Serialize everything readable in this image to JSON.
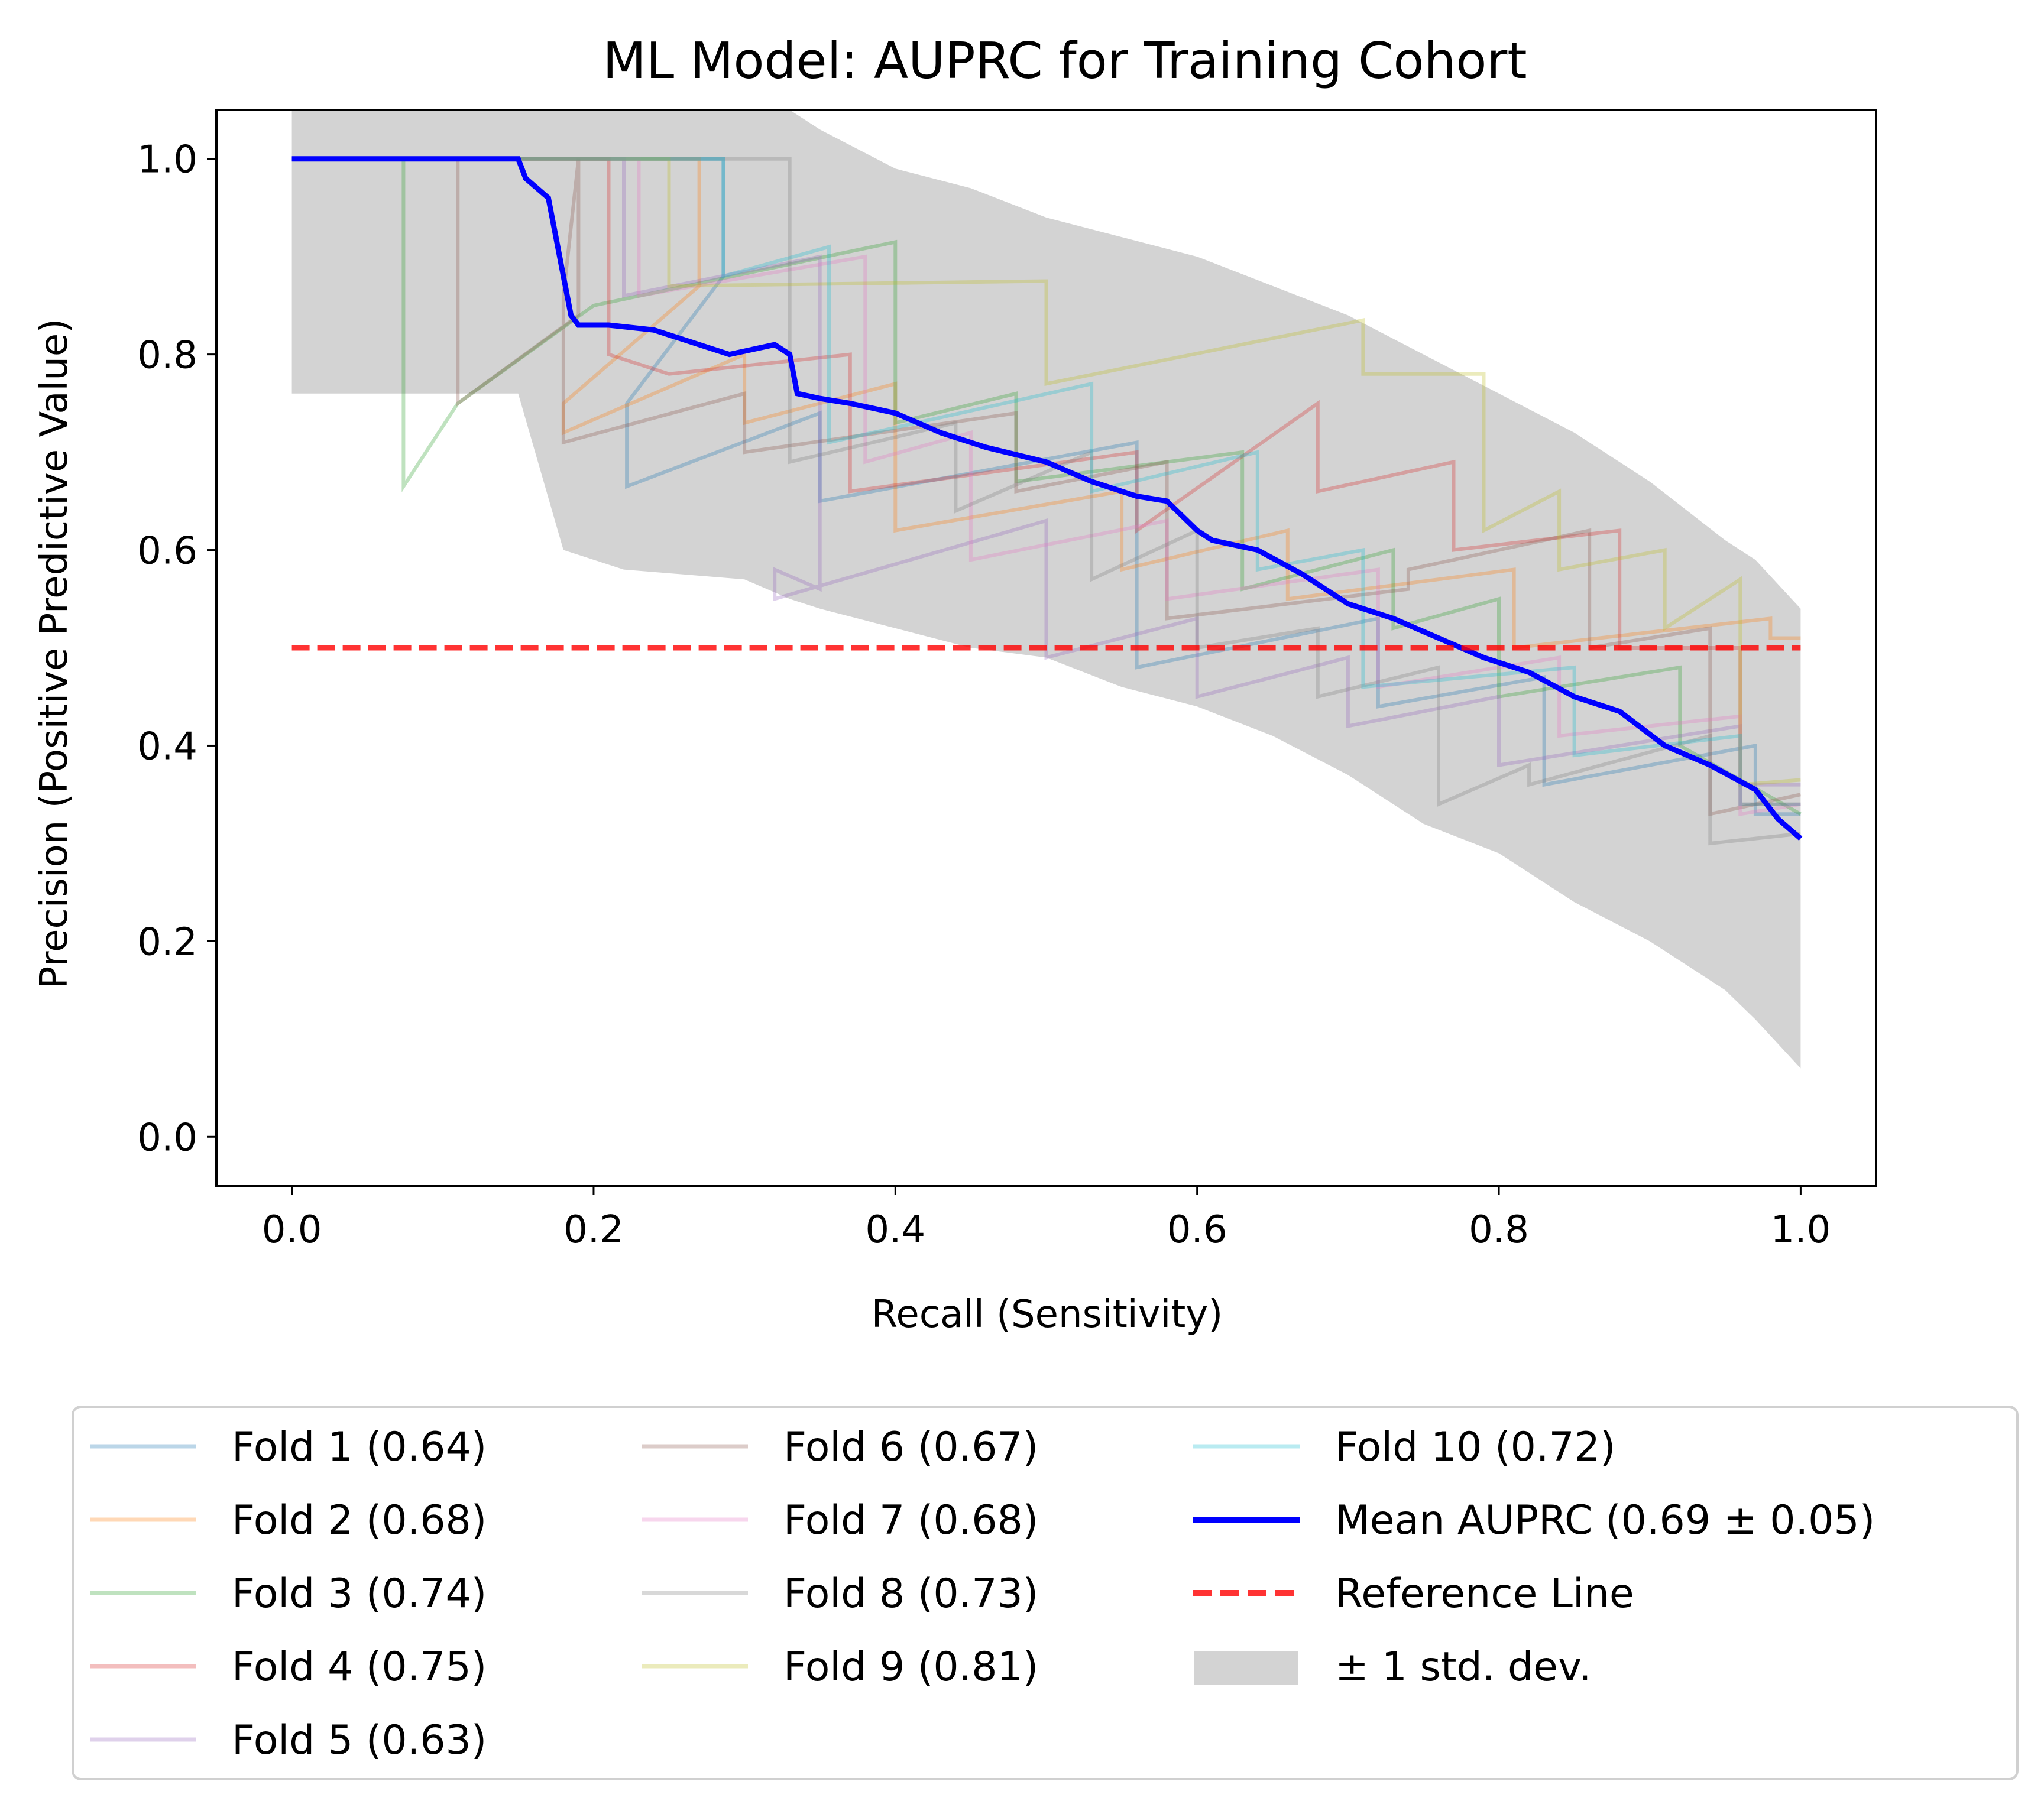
{
  "chart_data": {
    "type": "line",
    "title": "ML Model: AUPRC for Training Cohort",
    "xlabel": "Recall (Sensitivity)",
    "ylabel": "Precision (Positive Predictive Value)",
    "xlim": [
      -0.05,
      1.05
    ],
    "ylim": [
      -0.05,
      1.05
    ],
    "xticks": [
      0.0,
      0.2,
      0.4,
      0.6,
      0.8,
      1.0
    ],
    "xtick_labels": [
      "0.0",
      "0.2",
      "0.4",
      "0.6",
      "0.8",
      "1.0"
    ],
    "yticks": [
      0.0,
      0.2,
      0.4,
      0.6,
      0.8,
      1.0
    ],
    "ytick_labels": [
      "0.0",
      "0.2",
      "0.4",
      "0.6",
      "0.8",
      "1.0"
    ],
    "grid": false,
    "legend_position": "below",
    "series": [
      {
        "name": "Fold 1 (0.64)",
        "color": "#1f77b4",
        "opacity": 0.3,
        "x": [
          0,
          0.286,
          0.286,
          0.222,
          0.222,
          0.35,
          0.35,
          0.56,
          0.56,
          0.72,
          0.72,
          0.83,
          0.83,
          0.97,
          0.97,
          1.0
        ],
        "y": [
          1.0,
          1.0,
          0.88,
          0.75,
          0.665,
          0.74,
          0.65,
          0.71,
          0.48,
          0.53,
          0.44,
          0.47,
          0.36,
          0.4,
          0.33,
          0.33
        ]
      },
      {
        "name": "Fold 2 (0.68)",
        "color": "#ff7f0e",
        "opacity": 0.3,
        "x": [
          0,
          0.27,
          0.27,
          0.18,
          0.18,
          0.3,
          0.3,
          0.4,
          0.4,
          0.55,
          0.55,
          0.66,
          0.66,
          0.81,
          0.81,
          0.98,
          0.98,
          1.0
        ],
        "y": [
          1.0,
          1.0,
          0.87,
          0.75,
          0.72,
          0.8,
          0.73,
          0.77,
          0.62,
          0.66,
          0.58,
          0.62,
          0.55,
          0.58,
          0.5,
          0.53,
          0.51,
          0.51
        ]
      },
      {
        "name": "Fold 3 (0.74)",
        "color": "#2ca02c",
        "opacity": 0.3,
        "x": [
          0,
          0.074,
          0.074,
          0.11,
          0.2,
          0.4,
          0.4,
          0.48,
          0.48,
          0.63,
          0.63,
          0.73,
          0.73,
          0.8,
          0.8,
          0.92,
          0.92,
          1.0
        ],
        "y": [
          1.0,
          1.0,
          0.665,
          0.75,
          0.85,
          0.915,
          0.73,
          0.76,
          0.67,
          0.7,
          0.56,
          0.6,
          0.52,
          0.55,
          0.45,
          0.48,
          0.4,
          0.33
        ]
      },
      {
        "name": "Fold 4 (0.75)",
        "color": "#d62728",
        "opacity": 0.3,
        "x": [
          0,
          0.21,
          0.21,
          0.25,
          0.37,
          0.37,
          0.56,
          0.56,
          0.68,
          0.68,
          0.77,
          0.77,
          0.88,
          0.88,
          0.96,
          0.96,
          1.0
        ],
        "y": [
          1.0,
          1.0,
          0.8,
          0.78,
          0.8,
          0.66,
          0.7,
          0.62,
          0.75,
          0.66,
          0.69,
          0.6,
          0.62,
          0.5,
          0.5,
          0.34,
          0.34
        ]
      },
      {
        "name": "Fold 5 (0.63)",
        "color": "#9467bd",
        "opacity": 0.3,
        "x": [
          0,
          0.22,
          0.22,
          0.35,
          0.35,
          0.32,
          0.32,
          0.5,
          0.5,
          0.6,
          0.6,
          0.7,
          0.7,
          0.8,
          0.8,
          0.96,
          0.96,
          1.0
        ],
        "y": [
          1.0,
          1.0,
          0.86,
          0.9,
          0.56,
          0.58,
          0.55,
          0.63,
          0.49,
          0.53,
          0.45,
          0.49,
          0.42,
          0.45,
          0.38,
          0.42,
          0.36,
          0.36
        ]
      },
      {
        "name": "Fold 6 (0.67)",
        "color": "#8c564b",
        "opacity": 0.3,
        "x": [
          0,
          0.11,
          0.11,
          0.19,
          0.19,
          0.18,
          0.18,
          0.3,
          0.3,
          0.48,
          0.48,
          0.58,
          0.58,
          0.74,
          0.74,
          0.86,
          0.86,
          0.94,
          0.94,
          1.0
        ],
        "y": [
          1.0,
          1.0,
          0.75,
          0.84,
          1.0,
          0.86,
          0.71,
          0.76,
          0.7,
          0.74,
          0.66,
          0.69,
          0.53,
          0.56,
          0.58,
          0.62,
          0.5,
          0.52,
          0.33,
          0.35
        ]
      },
      {
        "name": "Fold 7 (0.68)",
        "color": "#e377c2",
        "opacity": 0.3,
        "x": [
          0,
          0.23,
          0.23,
          0.38,
          0.38,
          0.45,
          0.45,
          0.58,
          0.58,
          0.72,
          0.72,
          0.84,
          0.84,
          0.96,
          0.96,
          1.0
        ],
        "y": [
          1.0,
          1.0,
          0.86,
          0.9,
          0.69,
          0.72,
          0.59,
          0.63,
          0.55,
          0.58,
          0.46,
          0.49,
          0.41,
          0.43,
          0.33,
          0.34
        ]
      },
      {
        "name": "Fold 8 (0.73)",
        "color": "#7f7f7f",
        "opacity": 0.3,
        "x": [
          0,
          0.33,
          0.33,
          0.44,
          0.44,
          0.53,
          0.53,
          0.6,
          0.6,
          0.68,
          0.68,
          0.76,
          0.76,
          0.82,
          0.82,
          0.94,
          0.94,
          1.0
        ],
        "y": [
          1.0,
          1.0,
          0.69,
          0.73,
          0.64,
          0.7,
          0.57,
          0.62,
          0.5,
          0.52,
          0.45,
          0.48,
          0.34,
          0.38,
          0.36,
          0.41,
          0.3,
          0.31
        ]
      },
      {
        "name": "Fold 9 (0.81)",
        "color": "#bcbd22",
        "opacity": 0.3,
        "x": [
          0,
          0.25,
          0.25,
          0.5,
          0.5,
          0.71,
          0.71,
          0.79,
          0.79,
          0.84,
          0.84,
          0.91,
          0.91,
          0.96,
          0.96,
          1.0
        ],
        "y": [
          1.0,
          1.0,
          0.87,
          0.875,
          0.77,
          0.835,
          0.78,
          0.78,
          0.62,
          0.66,
          0.58,
          0.6,
          0.52,
          0.57,
          0.36,
          0.365
        ]
      },
      {
        "name": "Fold 10 (0.72)",
        "color": "#17becf",
        "opacity": 0.3,
        "x": [
          0,
          0.286,
          0.286,
          0.356,
          0.356,
          0.53,
          0.53,
          0.64,
          0.64,
          0.71,
          0.71,
          0.85,
          0.85,
          0.96,
          0.96,
          1.0
        ],
        "y": [
          1.0,
          1.0,
          0.88,
          0.91,
          0.71,
          0.77,
          0.66,
          0.7,
          0.58,
          0.6,
          0.46,
          0.48,
          0.39,
          0.41,
          0.34,
          0.34
        ]
      },
      {
        "name": "Mean AUPRC (0.69 ± 0.05)",
        "color": "#0000ff",
        "opacity": 1.0,
        "width": "thick",
        "x": [
          0,
          0.15,
          0.155,
          0.17,
          0.175,
          0.18,
          0.185,
          0.19,
          0.21,
          0.24,
          0.27,
          0.29,
          0.32,
          0.33,
          0.335,
          0.35,
          0.37,
          0.4,
          0.43,
          0.46,
          0.5,
          0.53,
          0.56,
          0.58,
          0.6,
          0.61,
          0.64,
          0.67,
          0.7,
          0.73,
          0.76,
          0.79,
          0.82,
          0.85,
          0.88,
          0.91,
          0.94,
          0.97,
          0.985,
          1.0
        ],
        "y": [
          1.0,
          1.0,
          0.98,
          0.96,
          0.92,
          0.88,
          0.84,
          0.83,
          0.83,
          0.825,
          0.81,
          0.8,
          0.81,
          0.8,
          0.76,
          0.755,
          0.75,
          0.74,
          0.72,
          0.705,
          0.69,
          0.67,
          0.655,
          0.65,
          0.62,
          0.61,
          0.6,
          0.575,
          0.545,
          0.53,
          0.51,
          0.49,
          0.475,
          0.45,
          0.435,
          0.4,
          0.38,
          0.355,
          0.325,
          0.305
        ]
      },
      {
        "name": "Reference Line",
        "color": "#ff0000",
        "opacity": 0.8,
        "dashed": true,
        "x": [
          0,
          1.0
        ],
        "y": [
          0.5,
          0.5
        ]
      }
    ],
    "band": {
      "name": "± 1 std. dev.",
      "color": "#d3d3d3",
      "x": [
        0.0,
        0.15,
        0.18,
        0.22,
        0.3,
        0.33,
        0.35,
        0.4,
        0.45,
        0.5,
        0.55,
        0.6,
        0.65,
        0.7,
        0.75,
        0.8,
        0.85,
        0.9,
        0.95,
        0.97,
        1.0
      ],
      "lower": [
        0.76,
        0.76,
        0.6,
        0.58,
        0.57,
        0.55,
        0.54,
        0.52,
        0.5,
        0.49,
        0.46,
        0.44,
        0.41,
        0.37,
        0.32,
        0.29,
        0.24,
        0.2,
        0.15,
        0.12,
        0.07
      ],
      "upper": [
        1.05,
        1.05,
        1.05,
        1.05,
        1.05,
        1.05,
        1.03,
        0.99,
        0.97,
        0.94,
        0.92,
        0.9,
        0.87,
        0.84,
        0.8,
        0.76,
        0.72,
        0.67,
        0.61,
        0.59,
        0.54
      ]
    }
  }
}
